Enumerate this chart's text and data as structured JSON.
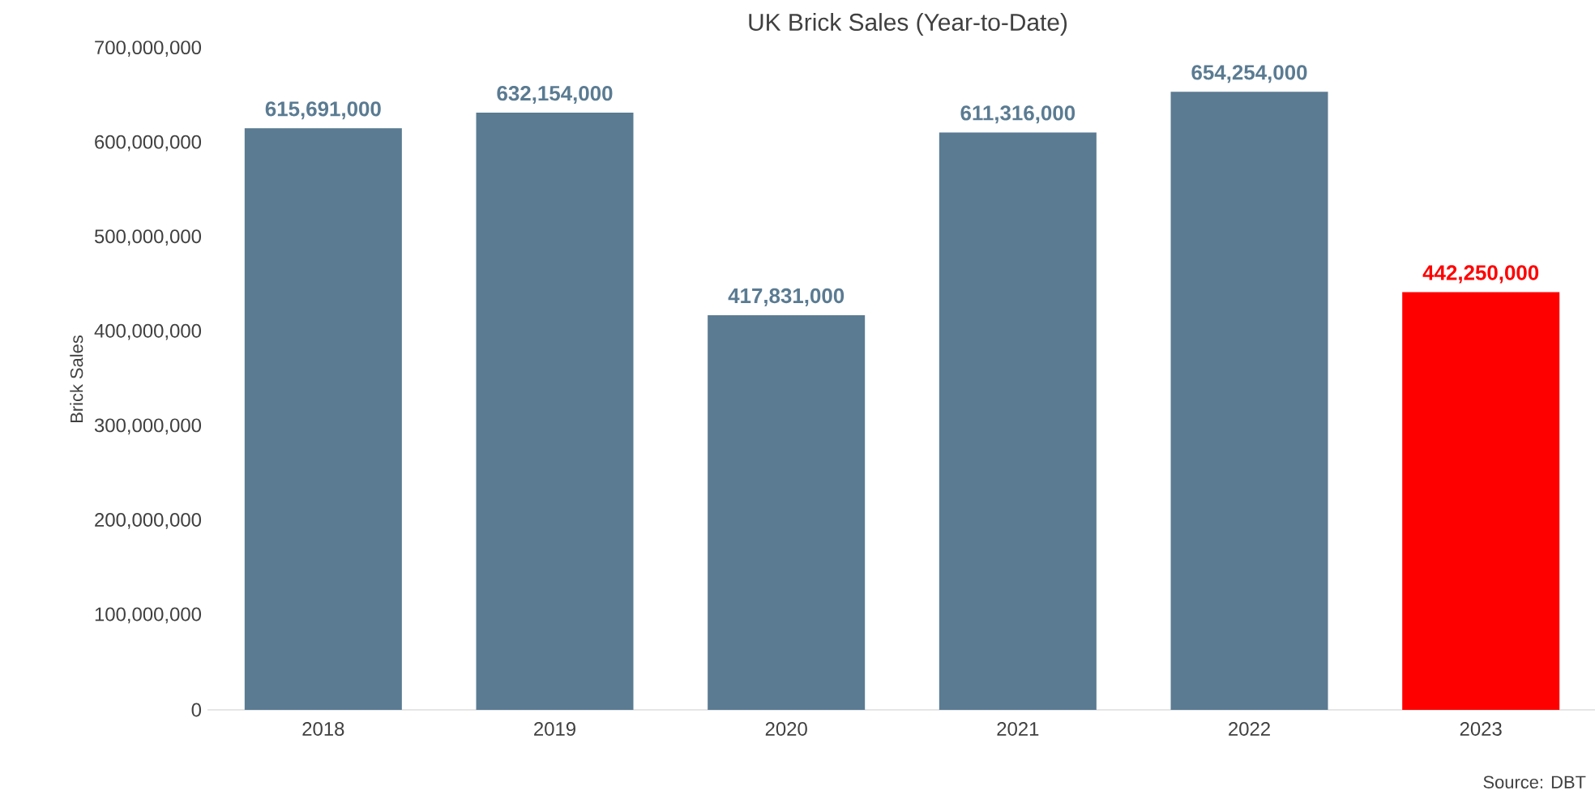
{
  "chart_data": {
    "type": "bar",
    "title": "UK Brick Sales (Year-to-Date)",
    "ylabel": "Brick Sales",
    "categories": [
      "2018",
      "2019",
      "2020",
      "2021",
      "2022",
      "2023"
    ],
    "values": [
      615691000,
      632154000,
      417831000,
      611316000,
      654254000,
      442250000
    ],
    "colors": [
      "#5a7b92",
      "#5a7b92",
      "#5a7b92",
      "#5a7b92",
      "#5a7b92",
      "#ff0000"
    ],
    "value_labels": [
      "615,691,000",
      "632,154,000",
      "417,831,000",
      "611,316,000",
      "654,254,000",
      "442,250,000"
    ],
    "ylim": [
      0,
      700000000
    ],
    "yticks": [
      0,
      {
        "value": 100000000,
        "label": "100,000,000"
      },
      {
        "value": 200000000,
        "label": "200,000,000"
      },
      {
        "value": 300000000,
        "label": "300,000,000"
      },
      {
        "value": 400000000,
        "label": "400,000,000"
      },
      {
        "value": 500000000,
        "label": "500,000,000"
      },
      {
        "value": 600000000,
        "label": "600,000,000"
      },
      {
        "value": 700000000,
        "label": "700,000,000"
      }
    ],
    "grid": false,
    "annotations": [
      "Source: DBT"
    ]
  }
}
